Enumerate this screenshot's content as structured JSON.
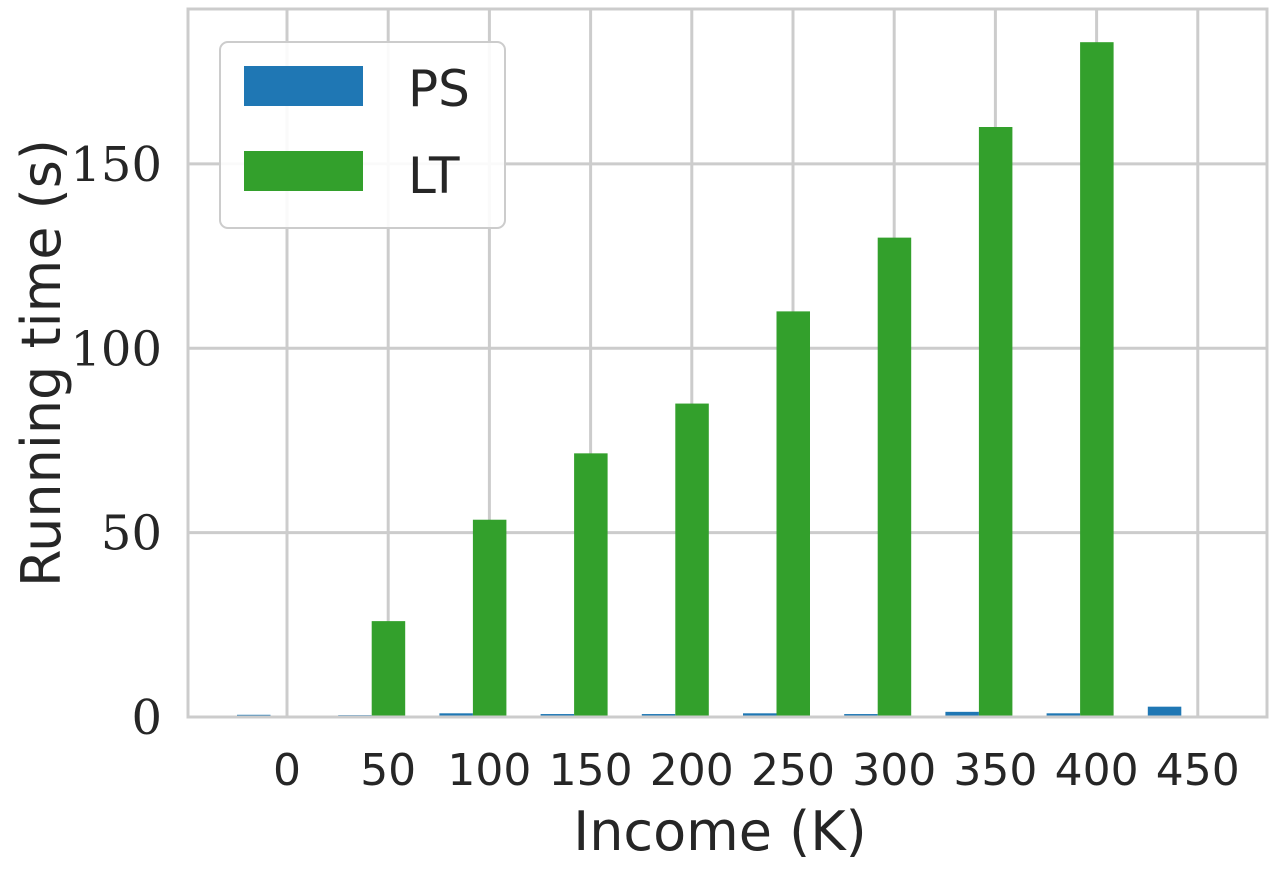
{
  "chart_data": {
    "type": "bar",
    "xlabel": "Income (K)",
    "ylabel": "Running time (s)",
    "x_ticks": [
      "0",
      "50",
      "100",
      "150",
      "200",
      "250",
      "300",
      "350",
      "400",
      "450"
    ],
    "y_ticks": [
      "0",
      "50",
      "100",
      "150"
    ],
    "y_tick_values": [
      0,
      50,
      100,
      150
    ],
    "ylim": [
      0,
      192
    ],
    "grid": true,
    "legend_position": "top-left",
    "series": [
      {
        "name": "PS",
        "color": "#1f77b4",
        "values": [
          0.6,
          0.5,
          1.0,
          0.8,
          0.8,
          1.0,
          0.8,
          1.4,
          1.0,
          2.8
        ]
      },
      {
        "name": "LT",
        "color": "#33a02c",
        "values": [
          0,
          26,
          53.5,
          71.5,
          85,
          110,
          130,
          160,
          183,
          0
        ]
      }
    ]
  }
}
